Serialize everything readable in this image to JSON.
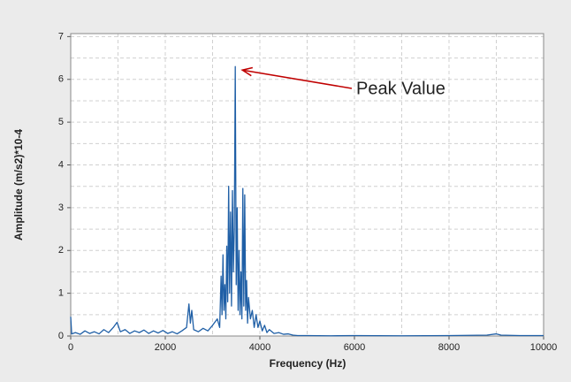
{
  "chart_data": {
    "type": "line",
    "x_label": "Frequency (Hz)",
    "y_label": "Amplitude (m/s2)*10-4",
    "annotation": "Peak Value",
    "color": "#1f5fa6",
    "annotation_color": "#c00000",
    "grid": true,
    "xlim": [
      0,
      10000
    ],
    "ylim": [
      0,
      7.07
    ],
    "xticks": [
      0,
      2000,
      4000,
      6000,
      8000,
      10000
    ],
    "yticks": [
      0,
      1,
      2,
      3,
      4,
      5,
      6,
      7
    ],
    "x_minor_grid": [
      1000,
      3000,
      5000,
      7000,
      9000
    ],
    "y_minor_grid": [
      0.5,
      1.5,
      2.5,
      3.5,
      4.5,
      5.5,
      6.5
    ],
    "x": [
      0,
      20,
      100,
      200,
      300,
      400,
      500,
      600,
      700,
      800,
      900,
      980,
      1050,
      1150,
      1250,
      1350,
      1450,
      1550,
      1650,
      1750,
      1850,
      1950,
      2050,
      2150,
      2250,
      2350,
      2450,
      2500,
      2530,
      2560,
      2600,
      2700,
      2800,
      2900,
      3000,
      3100,
      3150,
      3180,
      3200,
      3220,
      3240,
      3260,
      3280,
      3300,
      3320,
      3340,
      3360,
      3380,
      3400,
      3420,
      3440,
      3460,
      3480,
      3500,
      3520,
      3540,
      3560,
      3580,
      3600,
      3620,
      3640,
      3660,
      3680,
      3700,
      3720,
      3740,
      3760,
      3800,
      3840,
      3880,
      3920,
      3960,
      4000,
      4050,
      4100,
      4150,
      4200,
      4300,
      4400,
      4500,
      4600,
      4700,
      4800,
      5000,
      5500,
      6000,
      7000,
      8000,
      8800,
      9000,
      9100,
      9500,
      10000
    ],
    "values": [
      0.45,
      0.05,
      0.08,
      0.04,
      0.12,
      0.06,
      0.1,
      0.05,
      0.15,
      0.08,
      0.2,
      0.32,
      0.1,
      0.15,
      0.06,
      0.12,
      0.08,
      0.14,
      0.06,
      0.12,
      0.07,
      0.13,
      0.06,
      0.1,
      0.05,
      0.12,
      0.2,
      0.75,
      0.3,
      0.6,
      0.15,
      0.1,
      0.18,
      0.12,
      0.25,
      0.4,
      0.2,
      1.4,
      0.5,
      1.9,
      0.6,
      1.2,
      0.4,
      2.1,
      0.8,
      3.5,
      1.0,
      2.9,
      0.7,
      3.4,
      1.5,
      2.5,
      6.3,
      1.2,
      3.0,
      0.6,
      2.0,
      0.5,
      1.5,
      0.4,
      3.45,
      0.7,
      3.3,
      0.6,
      1.3,
      0.3,
      0.9,
      0.4,
      0.6,
      0.2,
      0.5,
      0.2,
      0.35,
      0.12,
      0.25,
      0.08,
      0.15,
      0.06,
      0.08,
      0.04,
      0.05,
      0.02,
      0.01,
      0.01,
      0.005,
      0.01,
      0.005,
      0.01,
      0.02,
      0.05,
      0.02,
      0.01,
      0.01
    ]
  }
}
